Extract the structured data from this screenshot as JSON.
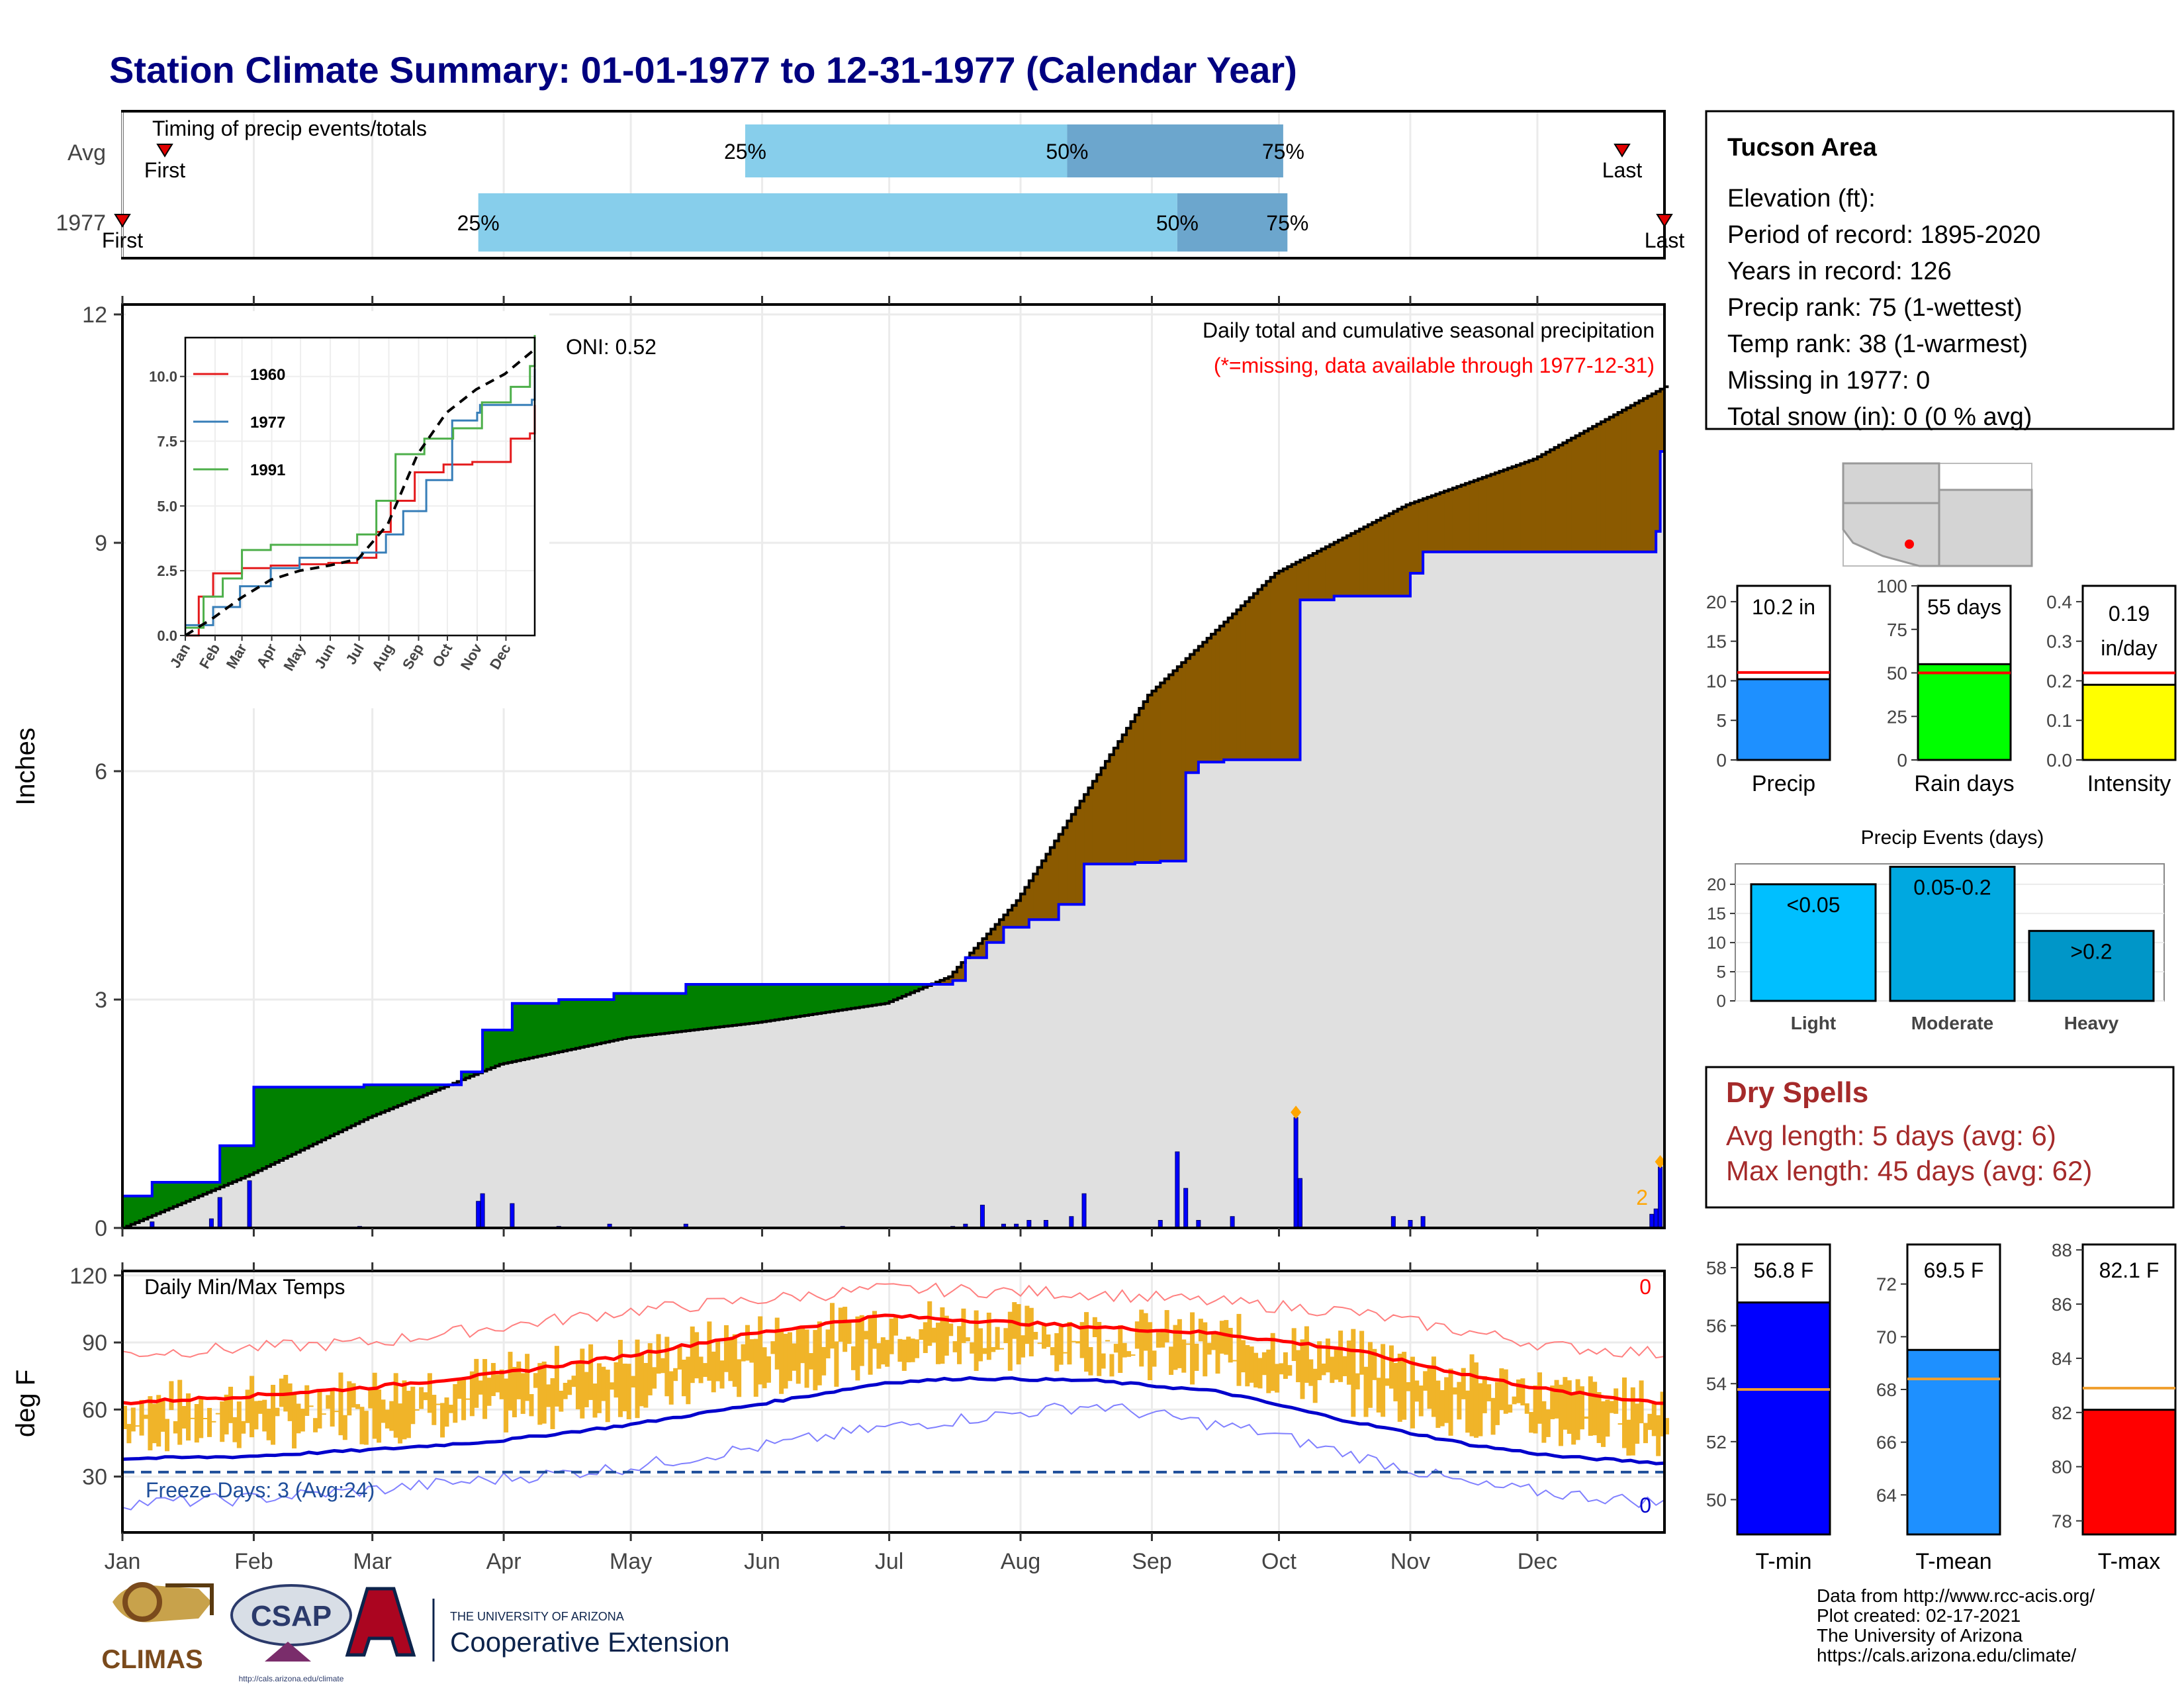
{
  "title": "Station Climate Summary: 01-01-1977 to 12-31-1977 (Calendar Year)",
  "timing": {
    "caption": "Timing of precip events/totals",
    "rows": [
      {
        "label": "Avg",
        "first": "First",
        "last": "Last",
        "p25_day": 148,
        "p50_day": 224,
        "p75_day": 275,
        "first_day": 11,
        "last_day": 355
      },
      {
        "label": "1977",
        "first": "First",
        "last": "Last",
        "p25_day": 85,
        "p50_day": 250,
        "p75_day": 276,
        "first_day": 1,
        "last_day": 365
      }
    ],
    "pct_labels": [
      "25%",
      "50%",
      "75%"
    ]
  },
  "main": {
    "ylabel": "Inches",
    "oni": "ONI: 0.52",
    "heading": "Daily total and cumulative seasonal precipitation",
    "note": "(*=missing, data available through 1977-12-31)",
    "corner_count": "2"
  },
  "months": [
    "Jan",
    "Feb",
    "Mar",
    "Apr",
    "May",
    "Jun",
    "Jul",
    "Aug",
    "Sep",
    "Oct",
    "Nov",
    "Dec"
  ],
  "chart_data": [
    {
      "type": "area",
      "name": "cumulative_precip",
      "ylim": [
        0,
        12
      ],
      "yticks": [
        "0",
        "3",
        "6",
        "9",
        "12"
      ],
      "avg_cumulative": [
        [
          1,
          0
        ],
        [
          31,
          0.7
        ],
        [
          59,
          1.45
        ],
        [
          90,
          2.15
        ],
        [
          120,
          2.5
        ],
        [
          151,
          2.7
        ],
        [
          181,
          2.95
        ],
        [
          196,
          3.3
        ],
        [
          212,
          4.3
        ],
        [
          243,
          7.0
        ],
        [
          273,
          8.6
        ],
        [
          304,
          9.5
        ],
        [
          334,
          10.1
        ],
        [
          365,
          11.05
        ]
      ],
      "year_cumulative": [
        [
          1,
          0.42
        ],
        [
          7,
          0.42
        ],
        [
          8,
          0.6
        ],
        [
          23,
          0.6
        ],
        [
          24,
          1.08
        ],
        [
          31,
          1.08
        ],
        [
          32,
          1.85
        ],
        [
          57,
          1.85
        ],
        [
          58,
          1.88
        ],
        [
          80,
          1.88
        ],
        [
          81,
          2.05
        ],
        [
          85,
          2.05
        ],
        [
          86,
          2.6
        ],
        [
          92,
          2.6
        ],
        [
          93,
          2.95
        ],
        [
          103,
          2.95
        ],
        [
          104,
          3.0
        ],
        [
          116,
          3.0
        ],
        [
          117,
          3.08
        ],
        [
          133,
          3.08
        ],
        [
          134,
          3.2
        ],
        [
          185,
          3.2
        ],
        [
          186,
          3.2
        ],
        [
          197,
          3.25
        ],
        [
          200,
          3.55
        ],
        [
          205,
          3.75
        ],
        [
          209,
          3.95
        ],
        [
          215,
          4.05
        ],
        [
          222,
          4.25
        ],
        [
          228,
          4.78
        ],
        [
          240,
          4.8
        ],
        [
          246,
          4.82
        ],
        [
          252,
          5.98
        ],
        [
          255,
          6.12
        ],
        [
          261,
          6.15
        ],
        [
          278,
          6.15
        ],
        [
          279,
          8.25
        ],
        [
          287,
          8.3
        ],
        [
          299,
          8.3
        ],
        [
          305,
          8.6
        ],
        [
          308,
          8.88
        ],
        [
          362,
          8.88
        ],
        [
          363,
          9.15
        ],
        [
          364,
          10.2
        ],
        [
          365,
          10.25
        ]
      ],
      "daily_bars": [
        [
          8,
          0.08
        ],
        [
          22,
          0.12
        ],
        [
          24,
          0.4
        ],
        [
          31,
          0.62
        ],
        [
          57,
          0.02
        ],
        [
          85,
          0.35
        ],
        [
          86,
          0.45
        ],
        [
          93,
          0.32
        ],
        [
          104,
          0.02
        ],
        [
          116,
          0.05
        ],
        [
          134,
          0.05
        ],
        [
          171,
          0.02
        ],
        [
          197,
          0.02
        ],
        [
          200,
          0.05
        ],
        [
          204,
          0.3
        ],
        [
          209,
          0.05
        ],
        [
          212,
          0.05
        ],
        [
          215,
          0.1
        ],
        [
          219,
          0.1
        ],
        [
          225,
          0.15
        ],
        [
          228,
          0.45
        ],
        [
          246,
          0.1
        ],
        [
          250,
          1.0
        ],
        [
          252,
          0.52
        ],
        [
          255,
          0.1
        ],
        [
          263,
          0.15
        ],
        [
          278,
          1.45
        ],
        [
          279,
          0.65
        ],
        [
          301,
          0.15
        ],
        [
          305,
          0.1
        ],
        [
          308,
          0.15
        ],
        [
          362,
          0.18
        ],
        [
          363,
          0.25
        ],
        [
          364,
          0.8
        ]
      ],
      "colors": {
        "above_avg": "#008000",
        "below_avg": "#8B5A00",
        "avg_fill": "#E0E0E0",
        "year_line": "#0000FF"
      }
    },
    {
      "type": "line",
      "name": "inset_cumulative",
      "ylim": [
        0,
        11.5
      ],
      "yticks": [
        "0.0",
        "2.5",
        "5.0",
        "7.5",
        "10.0"
      ],
      "xticks": [
        "Jan",
        "Feb",
        "Mar",
        "Apr",
        "May",
        "Jun",
        "Jul",
        "Aug",
        "Sep",
        "Oct",
        "Nov",
        "Dec"
      ],
      "series": [
        {
          "name": "1960",
          "color": "#E41A1C",
          "values": [
            [
              1,
              0
            ],
            [
              15,
              1.5
            ],
            [
              30,
              2.4
            ],
            [
              60,
              2.6
            ],
            [
              90,
              2.7
            ],
            [
              120,
              2.75
            ],
            [
              150,
              2.8
            ],
            [
              180,
              3.0
            ],
            [
              200,
              4.0
            ],
            [
              215,
              5.2
            ],
            [
              240,
              6.3
            ],
            [
              270,
              6.6
            ],
            [
              300,
              6.7
            ],
            [
              340,
              7.6
            ],
            [
              360,
              7.8
            ],
            [
              365,
              8.9
            ]
          ]
        },
        {
          "name": "1977",
          "color": "#377EB8",
          "values": [
            [
              1,
              0.4
            ],
            [
              30,
              1.1
            ],
            [
              58,
              1.9
            ],
            [
              90,
              2.6
            ],
            [
              120,
              3.0
            ],
            [
              185,
              3.2
            ],
            [
              210,
              3.9
            ],
            [
              228,
              4.8
            ],
            [
              252,
              6.0
            ],
            [
              279,
              8.3
            ],
            [
              305,
              8.6
            ],
            [
              308,
              8.9
            ],
            [
              362,
              9.1
            ],
            [
              365,
              10.3
            ]
          ]
        },
        {
          "name": "1991",
          "color": "#4DAF4A",
          "values": [
            [
              1,
              0.3
            ],
            [
              20,
              1.5
            ],
            [
              40,
              2.2
            ],
            [
              60,
              3.3
            ],
            [
              90,
              3.5
            ],
            [
              150,
              3.5
            ],
            [
              180,
              3.9
            ],
            [
              200,
              5.2
            ],
            [
              220,
              7.0
            ],
            [
              250,
              7.6
            ],
            [
              280,
              8.0
            ],
            [
              310,
              9.0
            ],
            [
              340,
              9.6
            ],
            [
              360,
              10.4
            ],
            [
              365,
              11.6
            ]
          ]
        },
        {
          "name": "avg",
          "color": "#000000",
          "dashed": true,
          "values": [
            [
              1,
              0
            ],
            [
              31,
              0.7
            ],
            [
              59,
              1.45
            ],
            [
              90,
              2.15
            ],
            [
              120,
              2.5
            ],
            [
              151,
              2.7
            ],
            [
              181,
              2.95
            ],
            [
              212,
              4.3
            ],
            [
              243,
              7.0
            ],
            [
              273,
              8.6
            ],
            [
              304,
              9.5
            ],
            [
              334,
              10.1
            ],
            [
              365,
              11.05
            ]
          ]
        }
      ]
    },
    {
      "type": "line",
      "name": "daily_temps",
      "title": "Daily Min/Max Temps",
      "ylabel": "deg F",
      "ylim": [
        5,
        122
      ],
      "yticks": [
        "30",
        "60",
        "90",
        "120"
      ],
      "freeze_line": 32,
      "freeze_label": "Freeze Days: 3 (Avg:24)",
      "max_count_label": "0",
      "min_count_label": "0",
      "avg_max": [
        [
          1,
          63
        ],
        [
          30,
          66
        ],
        [
          60,
          70
        ],
        [
          90,
          76
        ],
        [
          120,
          84
        ],
        [
          150,
          94
        ],
        [
          181,
          102
        ],
        [
          200,
          100
        ],
        [
          230,
          97
        ],
        [
          260,
          94
        ],
        [
          290,
          87
        ],
        [
          320,
          75
        ],
        [
          340,
          68
        ],
        [
          365,
          63
        ]
      ],
      "avg_min": [
        [
          1,
          38
        ],
        [
          30,
          39
        ],
        [
          60,
          42
        ],
        [
          90,
          46
        ],
        [
          120,
          53
        ],
        [
          150,
          62
        ],
        [
          181,
          72
        ],
        [
          200,
          74
        ],
        [
          230,
          73
        ],
        [
          260,
          68
        ],
        [
          290,
          55
        ],
        [
          320,
          44
        ],
        [
          340,
          39
        ],
        [
          365,
          36
        ]
      ],
      "record_max": [
        [
          1,
          85
        ],
        [
          60,
          90
        ],
        [
          120,
          104
        ],
        [
          181,
          114
        ],
        [
          230,
          112
        ],
        [
          290,
          104
        ],
        [
          340,
          88
        ],
        [
          365,
          85
        ]
      ],
      "record_min": [
        [
          1,
          18
        ],
        [
          30,
          20
        ],
        [
          60,
          24
        ],
        [
          120,
          34
        ],
        [
          181,
          52
        ],
        [
          230,
          62
        ],
        [
          270,
          50
        ],
        [
          320,
          26
        ],
        [
          365,
          18
        ]
      ],
      "band_color": "#F0B429"
    },
    {
      "type": "bar",
      "name": "summary_bars",
      "categories": [
        "Precip",
        "Rain days",
        "Intensity"
      ],
      "values": [
        10.2,
        55,
        0.19
      ],
      "averages": [
        11.05,
        50,
        0.22
      ],
      "labels": [
        "10.2 in",
        "55 days",
        "0.19 in/day"
      ],
      "ylims": [
        [
          0,
          22
        ],
        [
          0,
          100
        ],
        [
          0,
          0.44
        ]
      ],
      "yticks": [
        [
          "0",
          "5",
          "10",
          "15",
          "20"
        ],
        [
          "0",
          "25",
          "50",
          "75",
          "100"
        ],
        [
          "0.0",
          "0.1",
          "0.2",
          "0.3",
          "0.4"
        ]
      ],
      "colors": [
        "#1E90FF",
        "#00FF00",
        "#FFFF00"
      ]
    },
    {
      "type": "bar",
      "name": "precip_events",
      "title": "Precip Events (days)",
      "categories": [
        "Light",
        "Moderate",
        "Heavy"
      ],
      "values": [
        20,
        23,
        12
      ],
      "labels": [
        "<0.05",
        "0.05-0.2",
        ">0.2"
      ],
      "ylim": [
        0,
        23.5
      ],
      "yticks": [
        "0",
        "5",
        "10",
        "15",
        "20"
      ],
      "colors": [
        "#00BFFF",
        "#00A8E0",
        "#0096C8"
      ]
    },
    {
      "type": "bar",
      "name": "temp_bars",
      "categories": [
        "T-min",
        "T-mean",
        "T-max"
      ],
      "values": [
        56.8,
        69.5,
        82.1
      ],
      "averages": [
        53.8,
        68.4,
        82.9
      ],
      "labels": [
        "56.8 F",
        "69.5 F",
        "82.1 F"
      ],
      "ylims": [
        [
          48.8,
          58.8
        ],
        [
          62.5,
          73.5
        ],
        [
          77.5,
          88.2
        ]
      ],
      "yticks": [
        [
          "50",
          "52",
          "54",
          "56",
          "58"
        ],
        [
          "64",
          "66",
          "68",
          "70",
          "72"
        ],
        [
          "78",
          "80",
          "82",
          "84",
          "86",
          "88"
        ]
      ],
      "colors": [
        "#0000FF",
        "#1E90FF",
        "#FF0000"
      ]
    }
  ],
  "station": {
    "name": "Tucson Area",
    "lines": [
      "Elevation (ft):",
      "Period of record: 1895-2020",
      "Years in record: 126",
      "Precip rank: 75 (1-wettest)",
      "Temp rank: 38 (1-warmest)",
      "Missing in 1977: 0",
      "Total snow (in): 0 (0 % avg)"
    ]
  },
  "dry_spells": {
    "title": "Dry Spells",
    "avg": "Avg length: 5 days (avg: 6)",
    "max": "Max length: 45 days (avg: 62)"
  },
  "footer": {
    "lines": [
      "Data from http://www.rcc-acis.org/",
      "Plot created: 02-17-2021",
      "The University of Arizona",
      "https://cals.arizona.edu/climate/"
    ],
    "logo_climas": "CLIMAS",
    "logo_csap": "CSAP",
    "logo_csap_url": "http://cals.arizona.edu/climate",
    "logo_ua_small": "THE UNIVERSITY OF ARIZONA",
    "logo_ua_big": "Cooperative Extension"
  },
  "colors": {
    "title": "#000080",
    "dry_spells": "#A52A2A",
    "note": "#FF0000"
  }
}
